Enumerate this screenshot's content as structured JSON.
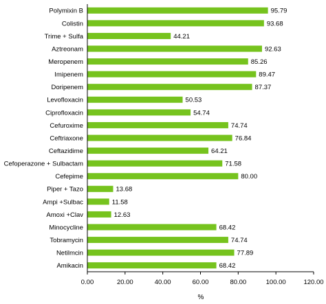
{
  "chart_data": {
    "type": "bar",
    "orientation": "horizontal",
    "categories": [
      "Polymixin B",
      "Colistin",
      "Trime + Sulfa",
      "Aztreonam",
      "Meropenem",
      "Imipenem",
      "Doripenem",
      "Levofloxacin",
      "Ciprofloxacin",
      "Cefuroxime",
      "Ceftriaxone",
      "Ceftazidime",
      "Cefoperazone + Sulbactam",
      "Cefepime",
      "Piper + Tazo",
      "Ampi +Sulbac",
      "Amoxi  +Clav",
      "Minocycline",
      "Tobramycin",
      "Netilmcin",
      "Amikacin"
    ],
    "values": [
      95.79,
      93.68,
      44.21,
      92.63,
      85.26,
      89.47,
      87.37,
      50.53,
      54.74,
      74.74,
      76.84,
      64.21,
      71.58,
      80.0,
      13.68,
      11.58,
      12.63,
      68.42,
      74.74,
      77.89,
      68.42
    ],
    "value_labels": [
      "95.79",
      "93.68",
      "44.21",
      "92.63",
      "85.26",
      "89.47",
      "87.37",
      "50.53",
      "54.74",
      "74.74",
      "76.84",
      "64.21",
      "71.58",
      "80.00",
      "13.68",
      "11.58",
      "12.63",
      "68.42",
      "74.74",
      "77.89",
      "68.42"
    ],
    "xlim": [
      0,
      120
    ],
    "xticks": [
      0,
      20,
      40,
      60,
      80,
      100,
      120
    ],
    "xtick_labels": [
      "0.00",
      "20.00",
      "40.00",
      "60.00",
      "80.00",
      "100.00",
      "120.00"
    ],
    "xlabel": "%",
    "ylabel": "",
    "title": "",
    "grid": false,
    "legend": "none",
    "bar_color": "#76c31e"
  }
}
